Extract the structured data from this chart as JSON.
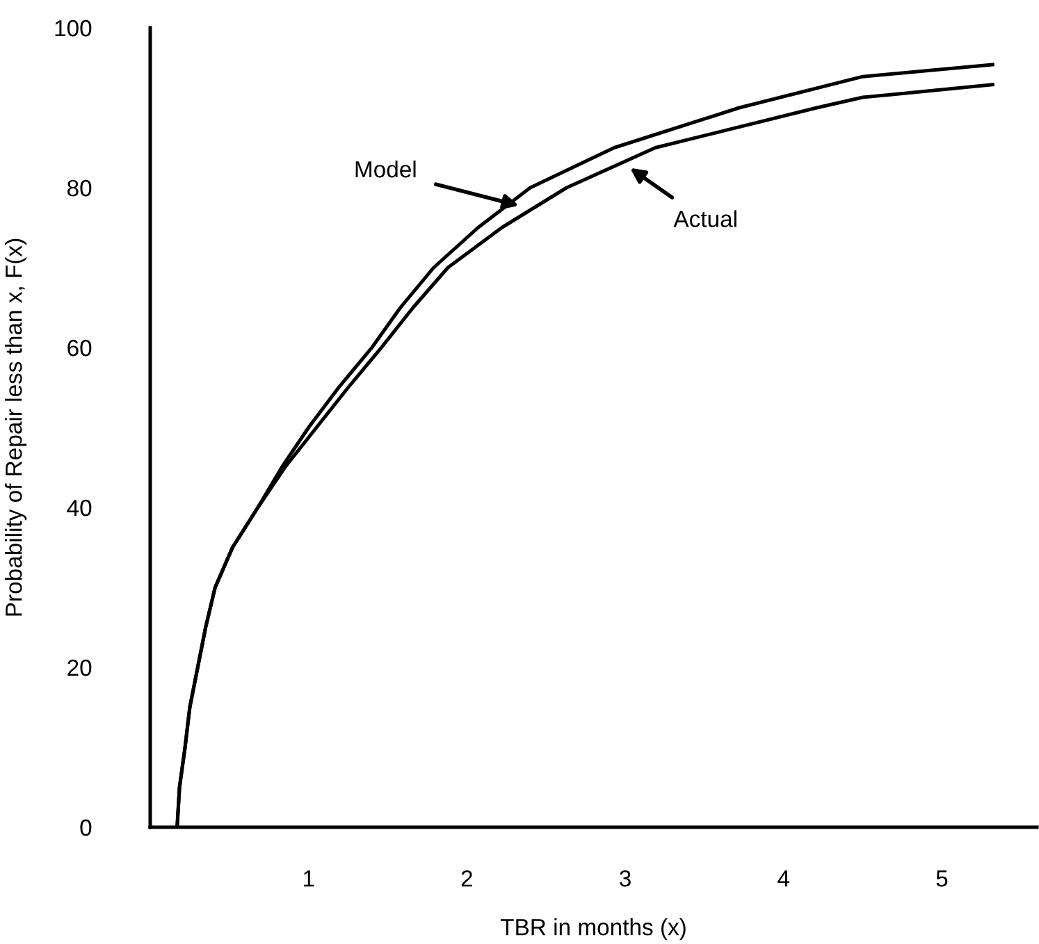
{
  "chart_data": {
    "type": "line",
    "xlabel": "TBR in months (x)",
    "ylabel": "Probability of Repair less than x, F(x)",
    "xlim": [
      0,
      5.6
    ],
    "ylim": [
      0,
      100
    ],
    "xticks": [
      1,
      2,
      3,
      4,
      5
    ],
    "yticks": [
      0,
      20,
      40,
      60,
      80,
      100
    ],
    "grid": false,
    "legend": false,
    "marker": "none",
    "line_style": "solid",
    "series": [
      {
        "color": "#000000",
        "x": [
          0.17,
          0.185,
          0.22,
          0.25,
          0.3,
          0.35,
          0.41,
          0.52,
          0.68,
          0.83,
          1.0,
          1.19,
          1.4,
          1.58,
          1.79,
          2.07,
          2.4,
          2.93,
          3.72,
          4.5,
          5.32
        ],
        "values": [
          0,
          5,
          10,
          15,
          20,
          25,
          30,
          35,
          40,
          45,
          50,
          55,
          60,
          65,
          70,
          75,
          80,
          85,
          90,
          93.9,
          95.4
        ]
      },
      {
        "color": "#000000",
        "x": [
          0.17,
          0.185,
          0.22,
          0.25,
          0.3,
          0.35,
          0.41,
          0.52,
          0.68,
          0.85,
          1.05,
          1.25,
          1.46,
          1.66,
          1.88,
          2.22,
          2.63,
          3.19,
          4.21,
          4.5,
          5.32
        ],
        "values": [
          0,
          5,
          10,
          15,
          20,
          25,
          30,
          35,
          40,
          45,
          50,
          55,
          60,
          65,
          70,
          75,
          80,
          85,
          90,
          91.3,
          92.9
        ]
      }
    ],
    "annotations": [
      {
        "text": "Model",
        "x": 2.34,
        "y": 77.7
      },
      {
        "text": "Actual",
        "x": 3.02,
        "y": 82.6
      }
    ]
  }
}
